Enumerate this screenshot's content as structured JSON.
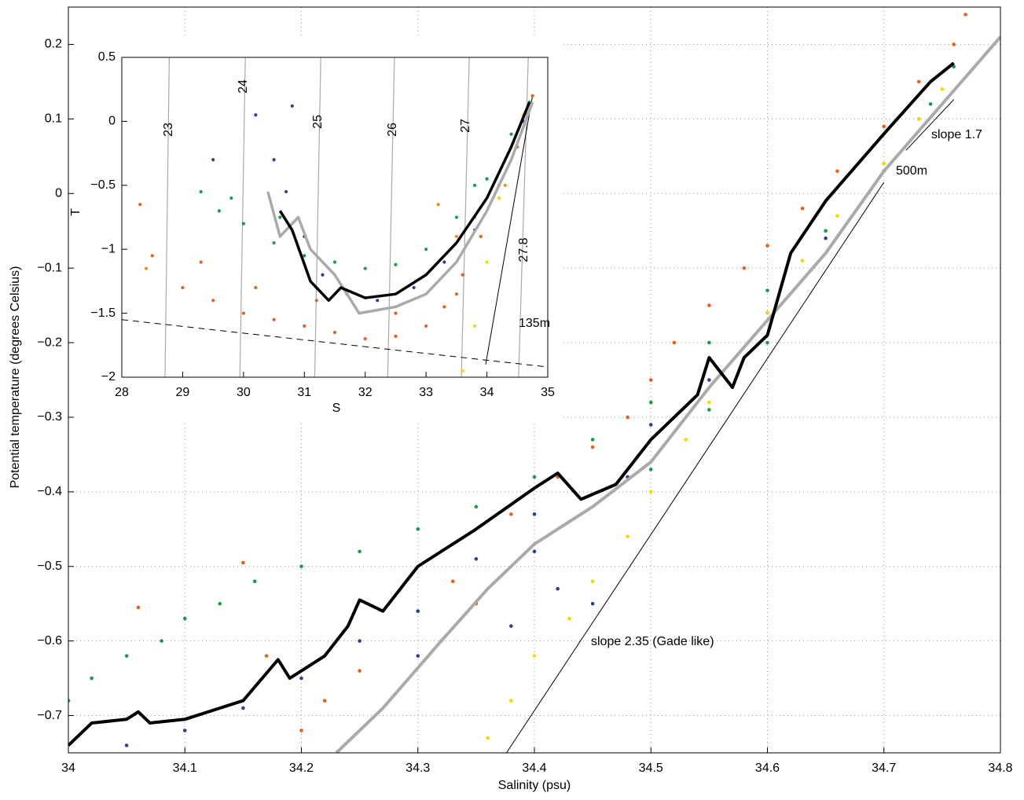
{
  "chart_data": [
    {
      "type": "scatter",
      "xlabel": "Salinity (psu)",
      "ylabel": "Potential temperature (degrees Celsius)",
      "xlim": [
        34,
        34.8
      ],
      "ylim": [
        -0.75,
        0.25
      ],
      "xticks": [
        34,
        34.1,
        34.2,
        34.3,
        34.4,
        34.5,
        34.6,
        34.7,
        34.8
      ],
      "yticks": [
        {
          "value": -0.7,
          "label": "−0.7"
        },
        {
          "value": -0.6,
          "label": "−0.6"
        },
        {
          "value": -0.5,
          "label": "−0.5"
        },
        {
          "value": -0.4,
          "label": "−0.4"
        },
        {
          "value": -0.3,
          "label": "−0.3"
        },
        {
          "value": -0.2,
          "label": "−0.2"
        },
        {
          "value": -0.1,
          "label": "−0.1"
        },
        0,
        0.1,
        0.2
      ],
      "grid": true,
      "series": [
        {
          "color": "#e8601c",
          "mode": "markers",
          "x": [
            34.17,
            34.2,
            34.22,
            34.25,
            34.3,
            34.33,
            34.38,
            34.42,
            34.45,
            34.48,
            34.5,
            34.52,
            34.55,
            34.58,
            34.6,
            34.63,
            34.66,
            34.7,
            34.73,
            34.76,
            34.77,
            34.15,
            34.06,
            34.35,
            34.32
          ],
          "y": [
            -0.62,
            -0.72,
            -0.68,
            -0.64,
            -0.56,
            -0.52,
            -0.43,
            -0.38,
            -0.34,
            -0.3,
            -0.25,
            -0.2,
            -0.15,
            -0.1,
            -0.07,
            -0.02,
            0.03,
            0.09,
            0.15,
            0.2,
            0.24,
            -0.495,
            -0.555,
            -0.55,
            -0.6
          ]
        },
        {
          "color": "#1a9a4a",
          "mode": "markers",
          "x": [
            34.0,
            34.02,
            34.05,
            34.08,
            34.1,
            34.13,
            34.16,
            34.2,
            34.25,
            34.3,
            34.35,
            34.4,
            34.45,
            34.5,
            34.55,
            34.6,
            34.65,
            34.7,
            34.74,
            34.76,
            34.6,
            34.55,
            34.5
          ],
          "y": [
            -0.68,
            -0.65,
            -0.62,
            -0.6,
            -0.57,
            -0.55,
            -0.52,
            -0.5,
            -0.48,
            -0.45,
            -0.42,
            -0.38,
            -0.33,
            -0.28,
            -0.2,
            -0.13,
            -0.05,
            0.04,
            0.12,
            0.17,
            -0.2,
            -0.29,
            -0.37
          ]
        },
        {
          "color": "#2f3f98",
          "mode": "markers",
          "x": [
            34.05,
            34.1,
            34.15,
            34.2,
            34.25,
            34.3,
            34.35,
            34.4,
            34.42,
            34.45,
            34.48,
            34.5,
            34.55,
            34.6,
            34.65,
            34.7,
            34.73,
            34.38,
            34.4,
            34.3
          ],
          "y": [
            -0.74,
            -0.72,
            -0.69,
            -0.65,
            -0.6,
            -0.56,
            -0.49,
            -0.43,
            -0.53,
            -0.55,
            -0.38,
            -0.31,
            -0.25,
            -0.16,
            -0.06,
            0.03,
            0.1,
            -0.58,
            -0.48,
            -0.62
          ]
        },
        {
          "color": "#f5d800",
          "mode": "markers",
          "x": [
            34.36,
            34.38,
            34.4,
            34.43,
            34.45,
            34.48,
            34.5,
            34.53,
            34.55,
            34.58,
            34.6,
            34.63,
            34.66,
            34.7,
            34.73,
            34.75
          ],
          "y": [
            -0.73,
            -0.68,
            -0.62,
            -0.57,
            -0.52,
            -0.46,
            -0.4,
            -0.33,
            -0.28,
            -0.22,
            -0.16,
            -0.09,
            -0.03,
            0.04,
            0.1,
            0.14
          ]
        },
        {
          "color": "#aaaaaa",
          "mode": "lines",
          "x": [
            34.23,
            34.27,
            34.32,
            34.36,
            34.4,
            34.45,
            34.5,
            34.55,
            34.6,
            34.65,
            34.7,
            34.75,
            34.8
          ],
          "y": [
            -0.75,
            -0.69,
            -0.6,
            -0.53,
            -0.47,
            -0.42,
            -0.36,
            -0.26,
            -0.17,
            -0.08,
            0.03,
            0.12,
            0.21
          ]
        },
        {
          "color": "#000000",
          "mode": "lines",
          "x": [
            34.0,
            34.02,
            34.05,
            34.06,
            34.07,
            34.1,
            34.15,
            34.18,
            34.19,
            34.22,
            34.24,
            34.25,
            34.27,
            34.3,
            34.35,
            34.4,
            34.42,
            34.44,
            34.47,
            34.5,
            34.52,
            34.54,
            34.55,
            34.56,
            34.57,
            34.58,
            34.6,
            34.62,
            34.65,
            34.7,
            34.74,
            34.76
          ],
          "y": [
            -0.74,
            -0.71,
            -0.705,
            -0.695,
            -0.71,
            -0.705,
            -0.68,
            -0.625,
            -0.65,
            -0.62,
            -0.58,
            -0.545,
            -0.56,
            -0.5,
            -0.45,
            -0.395,
            -0.375,
            -0.41,
            -0.39,
            -0.33,
            -0.3,
            -0.27,
            -0.22,
            -0.24,
            -0.26,
            -0.22,
            -0.19,
            -0.08,
            -0.01,
            0.08,
            0.15,
            0.175
          ]
        }
      ],
      "annotations": [
        {
          "text": "slope 2.35 (Gade like)",
          "x": [
            34.376,
            34.7
          ],
          "y": [
            -0.75,
            0.015
          ]
        },
        {
          "text": "slope 1.7",
          "x": [
            34.719,
            34.76
          ],
          "y": [
            0.058,
            0.126
          ]
        },
        {
          "text": "500m"
        }
      ]
    },
    {
      "type": "scatter",
      "xlabel": "S",
      "ylabel": "T",
      "xlim": [
        28,
        35
      ],
      "ylim": [
        -2,
        0.5
      ],
      "xticks": [
        28,
        29,
        30,
        31,
        32,
        33,
        34,
        35
      ],
      "yticks": [
        {
          "value": -2,
          "label": "−2"
        },
        {
          "value": -1.5,
          "label": "−1.5"
        },
        {
          "value": -1,
          "label": "−1"
        },
        {
          "value": -0.5,
          "label": "−0.5"
        },
        0,
        0.5
      ],
      "grid": false,
      "isopycnals": [
        {
          "label": "23",
          "x": [
            28.71,
            28.78
          ],
          "y": [
            -2,
            0.5
          ]
        },
        {
          "label": "24",
          "x": [
            29.94,
            30.03
          ],
          "y": [
            -2,
            0.5
          ]
        },
        {
          "label": "25",
          "x": [
            31.17,
            31.27
          ],
          "y": [
            -2,
            0.5
          ]
        },
        {
          "label": "26",
          "x": [
            32.37,
            32.48
          ],
          "y": [
            -2,
            0.5
          ]
        },
        {
          "label": "27",
          "x": [
            33.58,
            33.71
          ],
          "y": [
            -2,
            0.5
          ]
        },
        {
          "label": "27.8",
          "x": [
            34.52,
            34.68
          ],
          "y": [
            -2,
            0.5
          ]
        }
      ],
      "series": [
        {
          "color": "#e8601c",
          "mode": "markers",
          "x": [
            28.3,
            28.5,
            29,
            29.5,
            30,
            30.5,
            31,
            31.5,
            32,
            32.5,
            33,
            33.3,
            33.6,
            33.9,
            34.2,
            34.5,
            34.75,
            29.3,
            30.2,
            31.2,
            32.5,
            33.5
          ],
          "y": [
            -0.65,
            -1.05,
            -1.3,
            -1.4,
            -1.5,
            -1.55,
            -1.6,
            -1.65,
            -1.7,
            -1.68,
            -1.6,
            -1.45,
            -1.2,
            -0.9,
            -0.6,
            -0.2,
            0.2,
            -1.1,
            -1.3,
            -1.4,
            -1.5,
            -1.35
          ]
        },
        {
          "color": "#f08a1c",
          "mode": "markers",
          "x": [
            28.4,
            33.5,
            33.8,
            34,
            33.2,
            34.3
          ],
          "y": [
            -1.15,
            -0.9,
            -0.75,
            -0.45,
            -0.65,
            -0.5
          ]
        },
        {
          "color": "#1a9a4a",
          "mode": "markers",
          "x": [
            29.3,
            29.6,
            30,
            30.5,
            31,
            31.5,
            32,
            32.5,
            33,
            33.5,
            34,
            34.4,
            34.7,
            29.8,
            30.6,
            33.8
          ],
          "y": [
            -0.55,
            -0.7,
            -0.8,
            -0.95,
            -1.05,
            -1.1,
            -1.15,
            -1.12,
            -1.0,
            -0.75,
            -0.45,
            -0.1,
            0.15,
            -0.6,
            -0.75,
            -0.5
          ]
        },
        {
          "color": "#2f3f98",
          "mode": "markers",
          "x": [
            30.2,
            30.5,
            30.7,
            31,
            31.3,
            31.7,
            32.2,
            32.8,
            33.3,
            33.8,
            34.2,
            34.6,
            30.8,
            29.5
          ],
          "y": [
            0.05,
            -0.3,
            -0.55,
            -0.9,
            -1.2,
            -1.35,
            -1.4,
            -1.3,
            -1.1,
            -0.85,
            -0.5,
            0,
            0.12,
            -0.3
          ]
        },
        {
          "color": "#f5d800",
          "mode": "markers",
          "x": [
            33.6,
            33.8,
            34.0,
            34.2,
            34.4,
            34.6
          ],
          "y": [
            -1.95,
            -1.6,
            -1.1,
            -0.6,
            -0.2,
            0.05
          ]
        },
        {
          "color": "#aaaaaa",
          "mode": "lines",
          "x": [
            30.4,
            30.6,
            30.9,
            31.1,
            31.5,
            31.9,
            32.5,
            33,
            33.5,
            34,
            34.4,
            34.75
          ],
          "y": [
            -0.55,
            -0.9,
            -0.75,
            -1.0,
            -1.2,
            -1.5,
            -1.45,
            -1.35,
            -1.1,
            -0.7,
            -0.3,
            0.15
          ]
        },
        {
          "color": "#000000",
          "mode": "lines",
          "x": [
            30.6,
            30.8,
            31.1,
            31.4,
            31.6,
            32,
            32.5,
            33,
            33.5,
            34,
            34.4,
            34.7
          ],
          "y": [
            -0.7,
            -0.85,
            -1.25,
            -1.4,
            -1.3,
            -1.38,
            -1.35,
            -1.2,
            -0.95,
            -0.6,
            -0.2,
            0.15
          ]
        }
      ],
      "annotations": [
        {
          "text": "135m",
          "x": [
            33.98,
            34.75
          ],
          "y": [
            -1.9,
            0.2
          ]
        },
        {
          "style": "dashed",
          "x": [
            28,
            35
          ],
          "y": [
            -1.55,
            -1.92
          ]
        }
      ]
    }
  ]
}
